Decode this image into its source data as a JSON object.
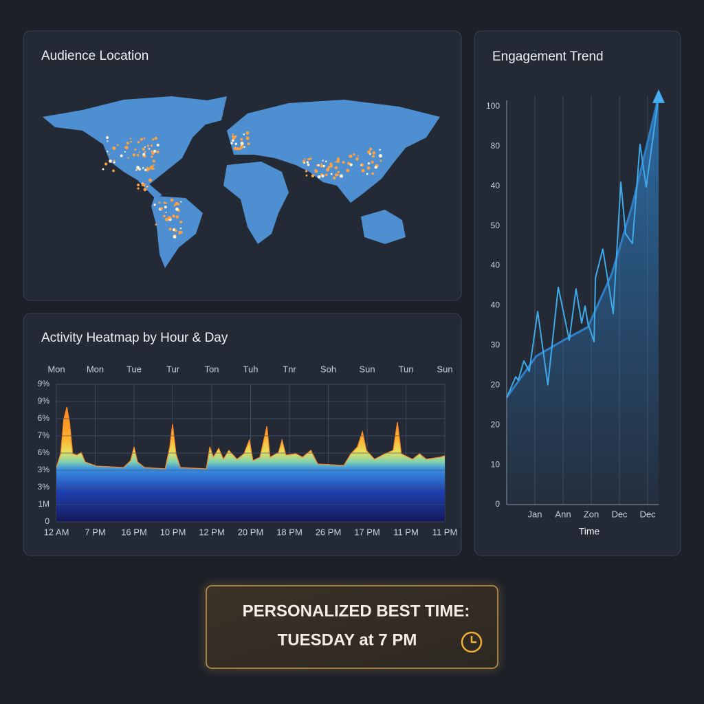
{
  "map": {
    "title": "Audience Location"
  },
  "chart_data": [
    {
      "type": "area",
      "title": "Activity Heatmap by Hour & Day",
      "top_labels": [
        "Mon",
        "Mon",
        "Tue",
        "Tur",
        "Ton",
        "Tuh",
        "Tnr",
        "Soh",
        "Sun",
        "Tun",
        "Sun"
      ],
      "x": [
        0,
        0.11,
        0.19,
        0.27,
        0.34,
        0.42,
        0.53,
        0.64,
        0.74,
        1.03,
        1.73,
        1.91,
        2.0,
        2.09,
        2.27,
        2.8,
        2.92,
        2.99,
        3.08,
        3.19,
        3.86,
        3.95,
        4.04,
        4.18,
        4.3,
        4.44,
        4.65,
        4.83,
        4.97,
        5.06,
        5.24,
        5.42,
        5.5,
        5.72,
        5.81,
        5.91,
        6.16,
        6.34,
        6.55,
        6.73,
        7.4,
        7.58,
        7.75,
        7.88,
        7.98,
        8.19,
        8.46,
        8.67,
        8.78,
        8.88,
        9.17,
        9.35,
        9.52,
        9.88,
        10
      ],
      "values": [
        3.16,
        3.96,
        5.96,
        6.68,
        5.76,
        3.96,
        3.88,
        4.04,
        3.48,
        3.24,
        3.16,
        3.56,
        4.36,
        3.48,
        3.16,
        3.08,
        4.36,
        5.68,
        3.96,
        3.16,
        3.08,
        4.36,
        3.76,
        4.28,
        3.64,
        4.16,
        3.64,
        3.96,
        4.76,
        3.56,
        3.76,
        5.56,
        3.76,
        4.04,
        4.76,
        3.88,
        3.96,
        3.76,
        4.16,
        3.36,
        3.28,
        3.96,
        4.36,
        5.24,
        4.16,
        3.64,
        3.96,
        4.16,
        5.8,
        3.96,
        3.64,
        3.96,
        3.64,
        3.76,
        3.84
      ],
      "xlim": [
        0,
        10
      ],
      "xticks": [
        {
          "value": 0,
          "label": "12 AM"
        },
        {
          "value": 1,
          "label": "7 PM"
        },
        {
          "value": 2,
          "label": "16 PM"
        },
        {
          "value": 3,
          "label": "10 PM"
        },
        {
          "value": 4,
          "label": "12 PM"
        },
        {
          "value": 5,
          "label": "20 PM"
        },
        {
          "value": 6,
          "label": "18 PM"
        },
        {
          "value": 7,
          "label": "26 PM"
        },
        {
          "value": 8,
          "label": "17 PM"
        },
        {
          "value": 9,
          "label": "11 PM"
        },
        {
          "value": 10,
          "label": "11 PM"
        }
      ],
      "ylim": [
        0,
        8
      ],
      "yticks": [
        0,
        {
          "value": 1,
          "label": "1M"
        },
        {
          "value": 2,
          "label": "3%"
        },
        {
          "value": 3,
          "label": "3%"
        },
        {
          "value": 4,
          "label": "6%"
        },
        {
          "value": 5,
          "label": "7%"
        },
        {
          "value": 6,
          "label": "6%"
        },
        {
          "value": 7,
          "label": "9%"
        },
        {
          "value": 8,
          "label": "9%"
        }
      ],
      "grid": "both"
    },
    {
      "type": "line",
      "title": "Engagement Trend",
      "x_label": "Time",
      "xlim": [
        0,
        5.4
      ],
      "xticks": [
        {
          "value": 1,
          "label": "Jan"
        },
        {
          "value": 2,
          "label": "Ann"
        },
        {
          "value": 3,
          "label": "Zon"
        },
        {
          "value": 4,
          "label": "Dec"
        },
        {
          "value": 5,
          "label": "Dec"
        }
      ],
      "ylim": [
        0,
        105
      ],
      "yticks": [
        0,
        10,
        20,
        {
          "value": 30,
          "label": "20"
        },
        {
          "value": 40,
          "label": "30"
        },
        {
          "value": 50,
          "label": "40"
        },
        {
          "value": 60,
          "label": "40"
        },
        {
          "value": 70,
          "label": "50"
        },
        {
          "value": 80,
          "label": "40"
        },
        {
          "value": 90,
          "label": "80"
        },
        100
      ],
      "grid": "x",
      "series": [
        {
          "color": "#2f7fc6",
          "fill": true,
          "x": [
            0,
            1.05,
            2.02,
            2.88,
            3.73,
            4.46,
            5.39
          ],
          "values": [
            26.9,
            37.3,
            41.3,
            44.6,
            58.0,
            75.3,
            102.6
          ]
        },
        {
          "color": "#3eaaea",
          "fill": false,
          "x": [
            0,
            0.32,
            0.41,
            0.61,
            0.8,
            1.1,
            1.46,
            1.83,
            2.22,
            2.46,
            2.66,
            2.78,
            2.88,
            3.1,
            3.15,
            3.41,
            3.78,
            4.05,
            4.22,
            4.46,
            4.73,
            4.95,
            5.39
          ],
          "values": [
            26.9,
            32.1,
            31.3,
            36.1,
            33.5,
            48.5,
            30.1,
            54.6,
            41.3,
            54.2,
            45.6,
            49.9,
            45.6,
            40.9,
            57.0,
            64.2,
            48.0,
            81.0,
            68.0,
            65.6,
            90.5,
            79.8,
            102.6
          ]
        }
      ]
    }
  ],
  "callout": {
    "line1": "PERSONALIZED BEST TIME:",
    "line2": "TUESDAY at 7 PM"
  }
}
